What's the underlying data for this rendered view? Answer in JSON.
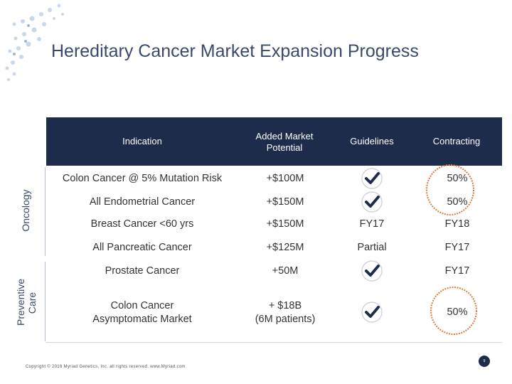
{
  "slide": {
    "title": "Hereditary Cancer Market Expansion Progress",
    "page_number": "9",
    "footer": "Copyright © 2016 Myriad Genetics, Inc. all rights reserved. www.Myriad.com"
  },
  "table": {
    "headers": {
      "indication": "Indication",
      "potential": "Added Market Potential",
      "guidelines": "Guidelines",
      "contracting": "Contracting"
    },
    "groups": {
      "oncology": "Oncology",
      "preventive": "Preventive Care"
    },
    "rows": [
      {
        "indication": "Colon Cancer @ 5% Mutation Risk",
        "potential": "+$100M",
        "guidelines": "check",
        "contracting": "50%"
      },
      {
        "indication": "All Endometrial Cancer",
        "potential": "+$150M",
        "guidelines": "check",
        "contracting": "50%"
      },
      {
        "indication": "Breast Cancer <60 yrs",
        "potential": "+$150M",
        "guidelines": "FY17",
        "contracting": "FY18"
      },
      {
        "indication": "All Pancreatic Cancer",
        "potential": "+$125M",
        "guidelines": "Partial",
        "contracting": "FY17"
      },
      {
        "indication": "Prostate Cancer",
        "potential": "+50M",
        "guidelines": "check",
        "contracting": "FY17"
      },
      {
        "indication_line1": "Colon Cancer",
        "indication_line2": "Asymptomatic Market",
        "potential_line1": "+ $18B",
        "potential_line2": "(6M patients)",
        "guidelines": "check",
        "contracting": "50%"
      }
    ]
  },
  "colors": {
    "header_bg": "#1d2c4a",
    "check": "#1d2c4a",
    "ring": "#e07a3a",
    "title": "#3a4a6b"
  }
}
